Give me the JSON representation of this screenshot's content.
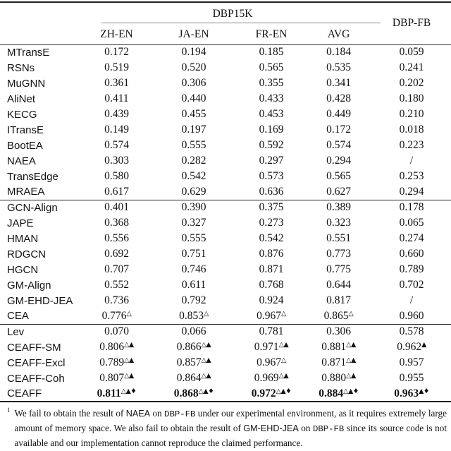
{
  "header": {
    "group_label": "DBP15K",
    "group2_label": "DBP-FB",
    "columns": [
      "ZH-EN",
      "JA-EN",
      "FR-EN",
      "AVG"
    ]
  },
  "sections": [
    {
      "rows": [
        {
          "label": "MTransE",
          "values": [
            "0.172",
            "0.194",
            "0.185",
            "0.184",
            "0.059"
          ]
        },
        {
          "label": "RSNs",
          "values": [
            "0.519",
            "0.520",
            "0.565",
            "0.535",
            "0.241"
          ]
        },
        {
          "label": "MuGNN",
          "values": [
            "0.361",
            "0.306",
            "0.355",
            "0.341",
            "0.202"
          ]
        },
        {
          "label": "AliNet",
          "values": [
            "0.411",
            "0.440",
            "0.433",
            "0.428",
            "0.180"
          ]
        },
        {
          "label": "KECG",
          "values": [
            "0.439",
            "0.455",
            "0.453",
            "0.449",
            "0.210"
          ]
        },
        {
          "label": "ITransE",
          "values": [
            "0.149",
            "0.197",
            "0.169",
            "0.172",
            "0.018"
          ]
        },
        {
          "label": "BootEA",
          "values": [
            "0.574",
            "0.555",
            "0.592",
            "0.574",
            "0.223"
          ]
        },
        {
          "label": "NAEA",
          "values": [
            "0.303",
            "0.282",
            "0.297",
            "0.294",
            "/"
          ]
        },
        {
          "label": "TransEdge",
          "values": [
            "0.580",
            "0.542",
            "0.573",
            "0.565",
            "0.253"
          ]
        },
        {
          "label": "MRAEA",
          "values": [
            "0.617",
            "0.629",
            "0.636",
            "0.627",
            "0.294"
          ]
        }
      ]
    },
    {
      "rows": [
        {
          "label": "GCN-Align",
          "values": [
            "0.401",
            "0.390",
            "0.375",
            "0.389",
            "0.178"
          ]
        },
        {
          "label": "JAPE",
          "values": [
            "0.368",
            "0.327",
            "0.273",
            "0.323",
            "0.065"
          ]
        },
        {
          "label": "HMAN",
          "values": [
            "0.556",
            "0.555",
            "0.542",
            "0.551",
            "0.274"
          ]
        },
        {
          "label": "RDGCN",
          "values": [
            "0.692",
            "0.751",
            "0.876",
            "0.773",
            "0.660"
          ]
        },
        {
          "label": "HGCN",
          "values": [
            "0.707",
            "0.746",
            "0.871",
            "0.775",
            "0.789"
          ]
        },
        {
          "label": "GM-Align",
          "values": [
            "0.552",
            "0.611",
            "0.768",
            "0.644",
            "0.702"
          ]
        },
        {
          "label": "GM-EHD-JEA",
          "values": [
            "0.736",
            "0.792",
            "0.924",
            "0.817",
            "/"
          ]
        },
        {
          "label": "CEA",
          "values": [
            "0.776^△",
            "0.853^△",
            "0.967^△",
            "0.865^△",
            "0.960"
          ]
        }
      ]
    },
    {
      "rows": [
        {
          "label": "Lev",
          "values": [
            "0.070",
            "0.066",
            "0.781",
            "0.306",
            "0.578"
          ]
        },
        {
          "label": "CEAFF-SM",
          "values": [
            "0.806^△▲",
            "0.866^△▲",
            "0.971^△▲",
            "0.881^△▲",
            "0.962^▲"
          ]
        },
        {
          "label": "CEAFF-Excl",
          "values": [
            "0.789^△▲",
            "0.857^△▲",
            "0.967^△",
            "0.871^△▲",
            "0.957"
          ]
        },
        {
          "label": "CEAFF-Coh",
          "values": [
            "0.807^△▲",
            "0.864^△▲",
            "0.969^△▲",
            "0.880^△▲",
            "0.955"
          ]
        },
        {
          "label": "CEAFF",
          "bold": true,
          "values": [
            "0.811^△▲♦",
            "0.868^△▲♦",
            "0.972^△▲♦",
            "0.884^△▲♦",
            "0.963^▲♦"
          ]
        }
      ]
    }
  ],
  "significance_markers": [
    "△",
    "▲",
    "♦"
  ],
  "footnote": {
    "marker": "1",
    "segments": [
      {
        "text": "We fail to obtain the result of ",
        "font": "serif"
      },
      {
        "text": "NAEA",
        "font": "sans"
      },
      {
        "text": " on ",
        "font": "serif"
      },
      {
        "text": "DBP-FB",
        "font": "mono"
      },
      {
        "text": " under our experimental environment, as it requires extremely large amount of memory space. We also fail to obtain the result of ",
        "font": "serif"
      },
      {
        "text": "GM-EHD-JEA",
        "font": "sans"
      },
      {
        "text": " on ",
        "font": "serif"
      },
      {
        "text": "DBP-FB",
        "font": "mono"
      },
      {
        "text": " since its source code is not available and our implementation cannot reproduce the claimed performance.",
        "font": "serif"
      }
    ]
  }
}
